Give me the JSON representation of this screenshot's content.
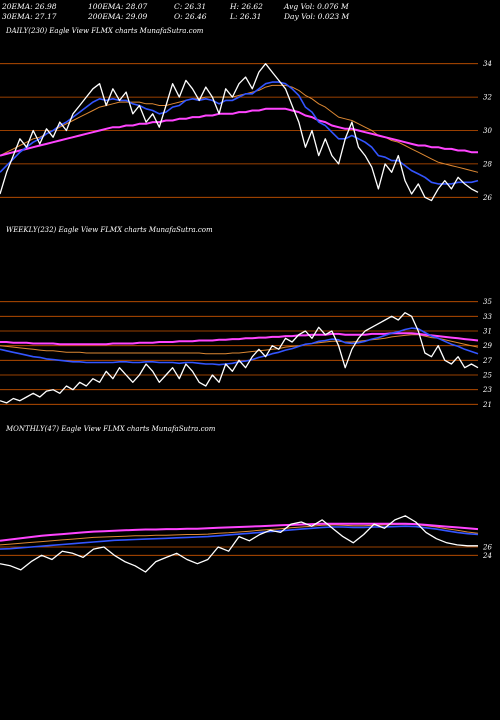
{
  "header": {
    "row1": [
      "20EMA: 26.98",
      "100EMA: 28.07",
      "C: 26.31",
      "H: 26.62",
      "Avg Vol: 0.076  M"
    ],
    "row2": [
      "30EMA: 27.17",
      "200EMA: 29.09",
      "O: 26.46",
      "L: 26.31",
      "Day Vol: 0.023 M"
    ]
  },
  "colors": {
    "price": "#ffffff",
    "ema_fast": "#3355ff",
    "ema_slow": "#ff44ff",
    "ema_mid": "#dd8833",
    "grid": "#cc5500"
  },
  "chart_data": [
    {
      "type": "line",
      "title": "DAILY(230) Eagle  View  FLMX  charts MunafaSutra.com",
      "y_ticks": [
        34,
        32,
        30,
        28,
        26
      ],
      "ylim": [
        25,
        35
      ],
      "grid": true,
      "series": [
        {
          "name": "",
          "role": "price",
          "values": [
            26.2,
            27.5,
            28.5,
            29.5,
            29.0,
            30.0,
            29.2,
            30.1,
            29.6,
            30.5,
            30.0,
            31.0,
            31.5,
            32.0,
            32.5,
            32.8,
            31.5,
            32.5,
            31.8,
            32.3,
            31.0,
            31.5,
            30.5,
            31.0,
            30.2,
            31.5,
            32.8,
            32.0,
            33.0,
            32.5,
            31.8,
            32.6,
            32.0,
            31.0,
            32.5,
            32.0,
            32.8,
            33.2,
            32.5,
            33.5,
            34.0,
            33.5,
            33.0,
            32.5,
            31.5,
            30.5,
            29.0,
            30.0,
            28.5,
            29.5,
            28.5,
            28.0,
            29.5,
            30.5,
            29.0,
            28.5,
            27.8,
            26.5,
            28.0,
            27.5,
            28.5,
            27.0,
            26.2,
            26.8,
            26.0,
            25.8,
            26.5,
            27.0,
            26.5,
            27.2,
            26.8,
            26.5,
            26.3
          ]
        },
        {
          "name": "",
          "role": "ema_fast",
          "values": [
            27.5,
            27.9,
            28.3,
            28.7,
            29.0,
            29.3,
            29.5,
            29.8,
            30.0,
            30.3,
            30.5,
            30.8,
            31.1,
            31.4,
            31.7,
            31.9,
            31.8,
            31.9,
            31.8,
            31.8,
            31.6,
            31.5,
            31.3,
            31.2,
            31.0,
            31.1,
            31.4,
            31.5,
            31.8,
            31.9,
            31.8,
            31.9,
            31.8,
            31.6,
            31.8,
            31.8,
            32.0,
            32.2,
            32.2,
            32.5,
            32.8,
            32.9,
            32.9,
            32.8,
            32.5,
            32.1,
            31.4,
            31.1,
            30.5,
            30.3,
            29.9,
            29.5,
            29.5,
            29.7,
            29.5,
            29.3,
            29.0,
            28.5,
            28.4,
            28.2,
            28.2,
            27.9,
            27.6,
            27.4,
            27.2,
            26.9,
            26.8,
            26.8,
            26.8,
            26.9,
            26.9,
            26.9,
            27.0
          ]
        },
        {
          "name": "",
          "role": "ema_mid",
          "values": [
            28.5,
            28.7,
            28.9,
            29.1,
            29.3,
            29.5,
            29.6,
            29.8,
            30.0,
            30.2,
            30.4,
            30.6,
            30.8,
            31.0,
            31.2,
            31.4,
            31.5,
            31.6,
            31.7,
            31.7,
            31.7,
            31.7,
            31.6,
            31.6,
            31.5,
            31.5,
            31.6,
            31.7,
            31.8,
            31.9,
            31.9,
            32.0,
            32.0,
            32.0,
            32.0,
            32.0,
            32.1,
            32.2,
            32.3,
            32.4,
            32.6,
            32.7,
            32.7,
            32.7,
            32.6,
            32.4,
            32.1,
            31.9,
            31.6,
            31.4,
            31.1,
            30.8,
            30.7,
            30.6,
            30.4,
            30.2,
            30.0,
            29.7,
            29.6,
            29.4,
            29.3,
            29.1,
            28.9,
            28.7,
            28.5,
            28.3,
            28.1,
            28.0,
            27.9,
            27.8,
            27.7,
            27.6,
            27.5
          ]
        },
        {
          "name": "",
          "role": "ema_slow",
          "values": [
            28.5,
            28.6,
            28.7,
            28.8,
            28.9,
            29.0,
            29.1,
            29.2,
            29.3,
            29.4,
            29.5,
            29.6,
            29.7,
            29.8,
            29.9,
            30.0,
            30.1,
            30.2,
            30.2,
            30.3,
            30.3,
            30.4,
            30.4,
            30.5,
            30.5,
            30.6,
            30.6,
            30.7,
            30.7,
            30.8,
            30.8,
            30.9,
            30.9,
            31.0,
            31.0,
            31.0,
            31.1,
            31.1,
            31.2,
            31.2,
            31.3,
            31.3,
            31.3,
            31.3,
            31.2,
            31.1,
            30.9,
            30.8,
            30.6,
            30.5,
            30.3,
            30.2,
            30.1,
            30.1,
            30.0,
            29.9,
            29.8,
            29.7,
            29.6,
            29.5,
            29.4,
            29.3,
            29.2,
            29.1,
            29.1,
            29.0,
            29.0,
            28.9,
            28.9,
            28.8,
            28.8,
            28.7,
            28.7
          ]
        }
      ]
    },
    {
      "type": "line",
      "title": "WEEKLY(232) Eagle  View  FLMX  charts MunafaSutra.com",
      "y_ticks": [
        35,
        33,
        31,
        29,
        27,
        25,
        23,
        21
      ],
      "ylim": [
        20.5,
        35.5
      ],
      "grid": true,
      "series": [
        {
          "name": "",
          "role": "price",
          "values": [
            21.5,
            21.2,
            21.8,
            21.5,
            22.0,
            22.5,
            22.0,
            22.8,
            23.0,
            22.5,
            23.5,
            23.0,
            24.0,
            23.5,
            24.5,
            24.0,
            25.5,
            24.5,
            26.0,
            25.0,
            24.0,
            25.0,
            26.5,
            25.5,
            24.0,
            25.0,
            26.0,
            24.5,
            26.5,
            25.5,
            24.0,
            23.5,
            25.0,
            24.0,
            26.5,
            25.5,
            27.0,
            26.0,
            27.5,
            28.5,
            27.5,
            29.0,
            28.5,
            30.0,
            29.5,
            30.5,
            31.0,
            30.0,
            31.5,
            30.5,
            31.0,
            29.0,
            26.0,
            28.5,
            30.0,
            31.0,
            31.5,
            32.0,
            32.5,
            33.0,
            32.5,
            33.5,
            33.0,
            31.0,
            28.0,
            27.5,
            29.0,
            27.0,
            26.5,
            27.5,
            26.0,
            26.5,
            26.0
          ]
        },
        {
          "name": "",
          "role": "ema_fast",
          "values": [
            28.5,
            28.3,
            28.1,
            27.9,
            27.7,
            27.5,
            27.4,
            27.2,
            27.1,
            27.0,
            26.9,
            26.8,
            26.8,
            26.7,
            26.7,
            26.7,
            26.7,
            26.7,
            26.8,
            26.8,
            26.7,
            26.7,
            26.8,
            26.8,
            26.7,
            26.7,
            26.7,
            26.6,
            26.7,
            26.7,
            26.6,
            26.5,
            26.5,
            26.4,
            26.5,
            26.6,
            26.8,
            26.9,
            27.1,
            27.4,
            27.6,
            27.9,
            28.1,
            28.4,
            28.6,
            28.9,
            29.2,
            29.3,
            29.6,
            29.7,
            29.9,
            29.8,
            29.4,
            29.3,
            29.4,
            29.6,
            29.9,
            30.1,
            30.4,
            30.7,
            30.9,
            31.2,
            31.4,
            31.3,
            30.8,
            30.3,
            30.0,
            29.6,
            29.2,
            28.9,
            28.5,
            28.2,
            27.9
          ]
        },
        {
          "name": "",
          "role": "ema_mid",
          "values": [
            29.0,
            28.9,
            28.8,
            28.7,
            28.6,
            28.5,
            28.4,
            28.3,
            28.3,
            28.2,
            28.1,
            28.1,
            28.1,
            28.0,
            28.0,
            28.0,
            28.0,
            28.0,
            28.0,
            28.0,
            28.0,
            28.0,
            28.0,
            28.0,
            28.0,
            28.0,
            28.0,
            28.0,
            28.0,
            28.0,
            28.0,
            27.9,
            27.9,
            27.9,
            27.9,
            28.0,
            28.0,
            28.1,
            28.2,
            28.3,
            28.4,
            28.5,
            28.6,
            28.8,
            28.9,
            29.0,
            29.2,
            29.3,
            29.4,
            29.5,
            29.6,
            29.6,
            29.5,
            29.5,
            29.6,
            29.7,
            29.8,
            29.9,
            30.0,
            30.2,
            30.3,
            30.4,
            30.5,
            30.5,
            30.3,
            30.1,
            30.0,
            29.8,
            29.6,
            29.4,
            29.2,
            29.0,
            28.8
          ]
        },
        {
          "name": "",
          "role": "ema_slow",
          "values": [
            29.5,
            29.5,
            29.4,
            29.4,
            29.4,
            29.3,
            29.3,
            29.3,
            29.3,
            29.2,
            29.2,
            29.2,
            29.2,
            29.2,
            29.2,
            29.2,
            29.2,
            29.3,
            29.3,
            29.3,
            29.3,
            29.4,
            29.4,
            29.4,
            29.5,
            29.5,
            29.5,
            29.6,
            29.6,
            29.6,
            29.7,
            29.7,
            29.7,
            29.8,
            29.8,
            29.9,
            29.9,
            30.0,
            30.0,
            30.1,
            30.1,
            30.2,
            30.2,
            30.3,
            30.3,
            30.4,
            30.4,
            30.5,
            30.5,
            30.5,
            30.6,
            30.6,
            30.5,
            30.5,
            30.5,
            30.5,
            30.6,
            30.6,
            30.6,
            30.7,
            30.7,
            30.7,
            30.7,
            30.6,
            30.5,
            30.4,
            30.3,
            30.2,
            30.1,
            30.0,
            29.9,
            29.8,
            29.7
          ]
        }
      ]
    },
    {
      "type": "line",
      "title": "MONTHLY(47) Eagle  View  FLMX  charts MunafaSutra.com",
      "y_ticks": [
        26,
        24
      ],
      "ylim": [
        14,
        38
      ],
      "grid": true,
      "series": [
        {
          "name": "",
          "role": "price",
          "values": [
            22.0,
            21.5,
            20.5,
            22.5,
            24.0,
            23.0,
            25.0,
            24.5,
            23.5,
            25.5,
            26.0,
            24.0,
            22.5,
            21.5,
            20.0,
            22.5,
            23.5,
            24.5,
            23.0,
            22.0,
            23.0,
            26.0,
            25.0,
            28.5,
            27.5,
            29.0,
            30.0,
            29.5,
            31.5,
            32.0,
            31.0,
            32.5,
            30.5,
            28.5,
            27.0,
            29.0,
            31.5,
            30.5,
            32.5,
            33.5,
            32.0,
            29.5,
            28.0,
            27.0,
            26.5,
            26.3,
            26.3
          ]
        },
        {
          "name": "",
          "role": "ema_fast",
          "values": [
            25.5,
            25.6,
            25.8,
            26.0,
            26.2,
            26.4,
            26.6,
            26.8,
            27.0,
            27.2,
            27.4,
            27.6,
            27.7,
            27.8,
            27.9,
            28.0,
            28.1,
            28.2,
            28.3,
            28.4,
            28.5,
            28.7,
            28.9,
            29.1,
            29.3,
            29.5,
            29.7,
            29.9,
            30.1,
            30.3,
            30.5,
            30.7,
            30.8,
            30.8,
            30.7,
            30.7,
            30.8,
            30.8,
            30.9,
            31.0,
            30.9,
            30.6,
            30.3,
            29.9,
            29.5,
            29.2,
            29.0
          ]
        },
        {
          "name": "",
          "role": "ema_mid",
          "values": [
            26.5,
            26.7,
            26.9,
            27.1,
            27.3,
            27.5,
            27.7,
            27.9,
            28.1,
            28.3,
            28.4,
            28.5,
            28.6,
            28.7,
            28.7,
            28.8,
            28.8,
            28.9,
            29.0,
            29.0,
            29.1,
            29.3,
            29.4,
            29.6,
            29.8,
            30.0,
            30.2,
            30.4,
            30.6,
            30.8,
            31.0,
            31.2,
            31.3,
            31.2,
            31.1,
            31.1,
            31.2,
            31.3,
            31.4,
            31.5,
            31.4,
            31.1,
            30.8,
            30.4,
            30.0,
            29.6,
            29.3
          ]
        },
        {
          "name": "",
          "role": "ema_slow",
          "values": [
            27.5,
            27.8,
            28.1,
            28.4,
            28.7,
            28.9,
            29.1,
            29.3,
            29.5,
            29.7,
            29.8,
            29.9,
            30.0,
            30.1,
            30.2,
            30.2,
            30.3,
            30.3,
            30.4,
            30.4,
            30.5,
            30.6,
            30.7,
            30.8,
            30.9,
            31.0,
            31.1,
            31.2,
            31.3,
            31.4,
            31.5,
            31.6,
            31.6,
            31.6,
            31.6,
            31.6,
            31.6,
            31.6,
            31.6,
            31.6,
            31.5,
            31.3,
            31.1,
            30.9,
            30.7,
            30.5,
            30.3
          ]
        }
      ]
    }
  ]
}
